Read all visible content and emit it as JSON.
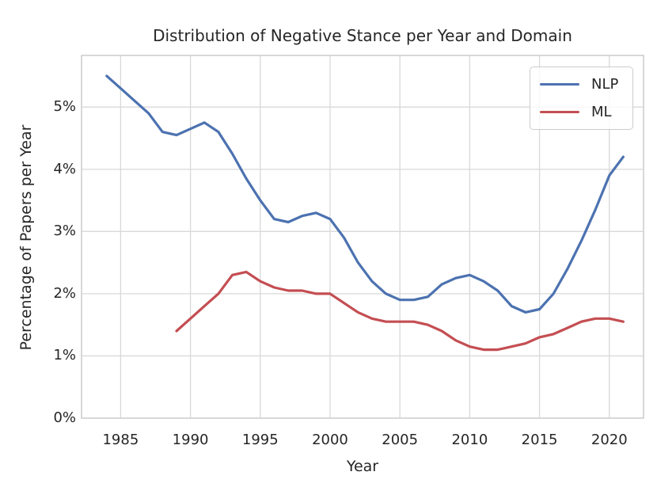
{
  "chart_data": {
    "type": "line",
    "title": "Distribution of Negative Stance per Year and Domain",
    "xlabel": "Year",
    "ylabel": "Percentage of Papers per Year",
    "xlim": [
      1982.2,
      2022.45
    ],
    "ylim": [
      0,
      5.83
    ],
    "grid": true,
    "legend_position": "upper right",
    "x_ticks": [
      1985,
      1990,
      1995,
      2000,
      2005,
      2010,
      2015,
      2020
    ],
    "x_tick_labels": [
      "1985",
      "1990",
      "1995",
      "2000",
      "2005",
      "2010",
      "2015",
      "2020"
    ],
    "y_ticks": [
      0,
      1,
      2,
      3,
      4,
      5
    ],
    "y_tick_labels": [
      "0%",
      "1%",
      "2%",
      "3%",
      "4%",
      "5%"
    ],
    "colors": {
      "nlp": "#4C72B0",
      "ml": "#C44E52",
      "grid": "#D9D9D9",
      "spine": "#CCCCCC",
      "text": "#262626"
    },
    "series": [
      {
        "name": "NLP",
        "color": "#4C72B0",
        "x": [
          1984,
          1985,
          1986,
          1987,
          1988,
          1989,
          1990,
          1991,
          1992,
          1993,
          1994,
          1995,
          1996,
          1997,
          1998,
          1999,
          2000,
          2001,
          2002,
          2003,
          2004,
          2005,
          2006,
          2007,
          2008,
          2009,
          2010,
          2011,
          2012,
          2013,
          2014,
          2015,
          2016,
          2017,
          2018,
          2019,
          2020,
          2021
        ],
        "y": [
          5.5,
          5.3,
          5.1,
          4.9,
          4.6,
          4.55,
          4.65,
          4.75,
          4.6,
          4.25,
          3.85,
          3.5,
          3.2,
          3.15,
          3.25,
          3.3,
          3.2,
          2.9,
          2.5,
          2.2,
          2.0,
          1.9,
          1.9,
          1.95,
          2.15,
          2.25,
          2.3,
          2.2,
          2.05,
          1.8,
          1.7,
          1.75,
          2.0,
          2.4,
          2.85,
          3.35,
          3.9,
          4.2
        ]
      },
      {
        "name": "ML",
        "color": "#C44E52",
        "x": [
          1989,
          1990,
          1991,
          1992,
          1993,
          1994,
          1995,
          1996,
          1997,
          1998,
          1999,
          2000,
          2001,
          2002,
          2003,
          2004,
          2005,
          2006,
          2007,
          2008,
          2009,
          2010,
          2011,
          2012,
          2013,
          2014,
          2015,
          2016,
          2017,
          2018,
          2019,
          2020,
          2021
        ],
        "y": [
          1.4,
          1.6,
          1.8,
          2.0,
          2.3,
          2.35,
          2.2,
          2.1,
          2.05,
          2.05,
          2.0,
          2.0,
          1.85,
          1.7,
          1.6,
          1.55,
          1.55,
          1.55,
          1.5,
          1.4,
          1.25,
          1.15,
          1.1,
          1.1,
          1.15,
          1.2,
          1.3,
          1.35,
          1.45,
          1.55,
          1.6,
          1.6,
          1.55
        ]
      }
    ]
  }
}
